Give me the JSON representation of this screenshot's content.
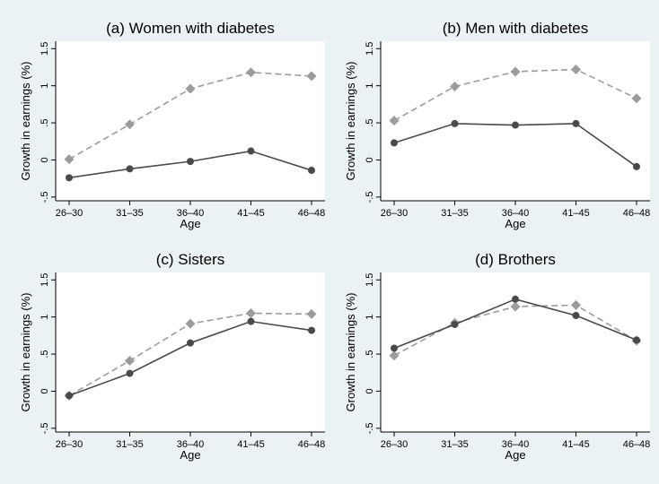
{
  "colors": {
    "background": "#eaf2f3",
    "plot_area": "#ffffff",
    "series_solid": "#4a4a4a",
    "series_dashed": "#9c9c9c"
  },
  "chart_data": [
    {
      "type": "line",
      "title": "(a) Women with diabetes",
      "xlabel": "Age",
      "ylabel": "Growth in earnings (%)",
      "categories": [
        "26–30",
        "31–35",
        "36–40",
        "41–45",
        "46–48"
      ],
      "yticks": [
        "-.5",
        "0",
        ".5",
        "1",
        "1.5"
      ],
      "ylim": [
        -0.55,
        1.6
      ],
      "grid": false,
      "legend": "none",
      "series": [
        {
          "style": "solid",
          "marker": "circle",
          "values": [
            -0.24,
            -0.12,
            -0.02,
            0.12,
            -0.14
          ]
        },
        {
          "style": "dashed",
          "marker": "diamond",
          "values": [
            0.01,
            0.48,
            0.96,
            1.18,
            1.13
          ]
        }
      ]
    },
    {
      "type": "line",
      "title": "(b) Men with diabetes",
      "xlabel": "Age",
      "ylabel": "Growth in earnings (%)",
      "categories": [
        "26–30",
        "31–35",
        "36–40",
        "41–45",
        "46–48"
      ],
      "yticks": [
        "-.5",
        "0",
        ".5",
        "1",
        "1.5"
      ],
      "ylim": [
        -0.55,
        1.6
      ],
      "grid": false,
      "legend": "none",
      "series": [
        {
          "style": "solid",
          "marker": "circle",
          "values": [
            0.23,
            0.49,
            0.47,
            0.49,
            -0.09
          ]
        },
        {
          "style": "dashed",
          "marker": "diamond",
          "values": [
            0.53,
            0.99,
            1.19,
            1.22,
            0.83
          ]
        }
      ]
    },
    {
      "type": "line",
      "title": "(c) Sisters",
      "xlabel": "Age",
      "ylabel": "Growth in earnings (%)",
      "categories": [
        "26–30",
        "31–35",
        "36–40",
        "41–45",
        "46–48"
      ],
      "yticks": [
        "-.5",
        "0",
        ".5",
        "1",
        "1.5"
      ],
      "ylim": [
        -0.55,
        1.6
      ],
      "grid": false,
      "legend": "none",
      "series": [
        {
          "style": "solid",
          "marker": "circle",
          "values": [
            -0.06,
            0.24,
            0.65,
            0.94,
            0.82
          ]
        },
        {
          "style": "dashed",
          "marker": "diamond",
          "values": [
            -0.06,
            0.41,
            0.91,
            1.05,
            1.04
          ]
        }
      ]
    },
    {
      "type": "line",
      "title": "(d) Brothers",
      "xlabel": "Age",
      "ylabel": "Growth in earnings (%)",
      "categories": [
        "26–30",
        "31–35",
        "36–40",
        "41–45",
        "46–48"
      ],
      "yticks": [
        "-.5",
        "0",
        ".5",
        "1",
        "1.5"
      ],
      "ylim": [
        -0.55,
        1.6
      ],
      "grid": false,
      "legend": "none",
      "series": [
        {
          "style": "solid",
          "marker": "circle",
          "values": [
            0.58,
            0.9,
            1.24,
            1.02,
            0.69
          ]
        },
        {
          "style": "dashed",
          "marker": "diamond",
          "values": [
            0.48,
            0.92,
            1.14,
            1.16,
            0.68
          ]
        }
      ]
    }
  ]
}
